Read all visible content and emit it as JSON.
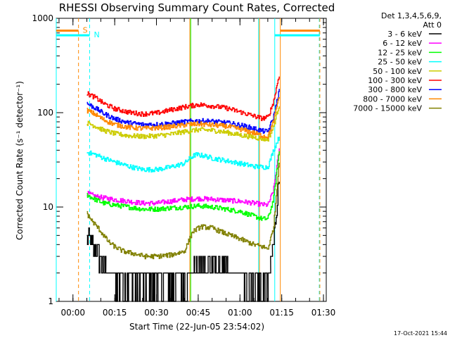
{
  "chart_data": {
    "type": "line",
    "title": "RHESSI Observing Summary Count Rates, Corrected",
    "xlabel": "Start Time (22-Jun-05 23:54:02)",
    "ylabel": "Corrected Count Rate (s⁻¹ detector⁻¹)",
    "yscale": "log",
    "ylim": [
      1,
      1000
    ],
    "xlim_minutes": [
      -6.0,
      91.0
    ],
    "x_ticks": [
      {
        "label": "00:00",
        "min": 0
      },
      {
        "label": "00:15",
        "min": 15
      },
      {
        "label": "00:30",
        "min": 30
      },
      {
        "label": "00:45",
        "min": 45
      },
      {
        "label": "01:00",
        "min": 60
      },
      {
        "label": "01:15",
        "min": 75
      },
      {
        "label": "01:30",
        "min": 90
      }
    ],
    "y_ticks": [
      {
        "label": "1",
        "value": 1
      },
      {
        "label": "10",
        "value": 10
      },
      {
        "label": "100",
        "value": 100
      },
      {
        "label": "1000",
        "value": 1000
      }
    ],
    "legend_header": [
      "Det 1,3,4,5,6,9,",
      "Att 0"
    ],
    "series": [
      {
        "name": "3 - 6 keV",
        "color": "#000000",
        "x": [
          5,
          8,
          11,
          13,
          16,
          20,
          25,
          30,
          35,
          40,
          45,
          50,
          55,
          60,
          65,
          68,
          70,
          72,
          74
        ],
        "values": [
          5.0,
          3.5,
          2.5,
          2.0,
          1.7,
          1.6,
          1.6,
          1.6,
          1.6,
          1.7,
          2.2,
          2.5,
          2.2,
          1.8,
          1.6,
          1.4,
          1.5,
          4.0,
          20
        ]
      },
      {
        "name": "6 - 12 keV",
        "color": "#ff00ff",
        "x": [
          5,
          8,
          11,
          15,
          20,
          25,
          30,
          35,
          40,
          45,
          50,
          55,
          60,
          65,
          68,
          70,
          72,
          74
        ],
        "values": [
          14,
          13,
          12.5,
          12,
          11.5,
          11,
          11,
          11.5,
          12,
          12.3,
          12.1,
          11.8,
          11.5,
          11,
          10.6,
          10.5,
          15,
          40
        ]
      },
      {
        "name": "12 - 25 keV",
        "color": "#00ff00",
        "x": [
          5,
          8,
          11,
          15,
          20,
          25,
          30,
          35,
          40,
          45,
          50,
          55,
          60,
          65,
          68,
          70,
          72,
          74
        ],
        "values": [
          13.5,
          12,
          11,
          10.5,
          10,
          9.5,
          9.5,
          9.8,
          10,
          10.3,
          10,
          9.5,
          9,
          8,
          7.5,
          7.5,
          12,
          38
        ]
      },
      {
        "name": "25 - 50 keV",
        "color": "#00ffff",
        "x": [
          5,
          8,
          11,
          15,
          20,
          25,
          30,
          35,
          40,
          42,
          44,
          47,
          50,
          55,
          60,
          65,
          68,
          70,
          72,
          74
        ],
        "values": [
          38,
          36,
          33,
          30,
          27,
          25,
          25,
          26.5,
          29,
          33,
          36,
          35,
          33,
          31,
          29,
          27,
          26.5,
          26.5,
          40,
          55
        ]
      },
      {
        "name": "50 - 100 keV",
        "color": "#cccc00",
        "x": [
          5,
          8,
          11,
          15,
          20,
          25,
          30,
          35,
          40,
          45,
          50,
          55,
          60,
          65,
          68,
          70,
          72,
          74
        ],
        "values": [
          78,
          72,
          65,
          60,
          57,
          56,
          57,
          59,
          63,
          66,
          65,
          62,
          58,
          55,
          53,
          52,
          70,
          120
        ]
      },
      {
        "name": "100 - 300 keV",
        "color": "#ff0000",
        "x": [
          5,
          8,
          11,
          15,
          20,
          25,
          30,
          35,
          40,
          45,
          50,
          55,
          60,
          65,
          68,
          70,
          72,
          74
        ],
        "values": [
          160,
          145,
          125,
          110,
          101,
          97,
          99,
          107,
          115,
          122,
          118,
          112,
          102,
          92,
          87,
          89,
          130,
          250
        ]
      },
      {
        "name": "300 - 800 keV",
        "color": "#0000ff",
        "x": [
          5,
          8,
          11,
          15,
          20,
          25,
          30,
          35,
          40,
          45,
          50,
          55,
          60,
          65,
          68,
          70,
          72,
          74
        ],
        "values": [
          125,
          112,
          98,
          86,
          78,
          75,
          75,
          77,
          80,
          82,
          81,
          78,
          74,
          68,
          64,
          63,
          90,
          170
        ]
      },
      {
        "name": "800 - 7000 keV",
        "color": "#ff8800",
        "x": [
          5,
          8,
          11,
          15,
          20,
          25,
          30,
          35,
          40,
          45,
          50,
          55,
          60,
          65,
          68,
          70,
          72,
          74
        ],
        "values": [
          106,
          96,
          84,
          75,
          70,
          68,
          69,
          71,
          74,
          76,
          74,
          72,
          67,
          61,
          57,
          56,
          80,
          150
        ]
      },
      {
        "name": "7000 - 15000 keV",
        "color": "#808000",
        "x": [
          5,
          7,
          9,
          11,
          13,
          15,
          18,
          22,
          26,
          30,
          35,
          40,
          43,
          46,
          50,
          55,
          60,
          65,
          68,
          70,
          72,
          74
        ],
        "values": [
          8.5,
          7,
          6,
          5,
          4.2,
          3.8,
          3.4,
          3.2,
          3.0,
          3.0,
          3.1,
          3.4,
          5.5,
          6.2,
          6.0,
          5.2,
          4.6,
          4.0,
          3.8,
          3.6,
          6,
          30
        ]
      }
    ],
    "markers": [
      {
        "type": "vline",
        "x": -6.0,
        "color": "#00ffff",
        "style": "solid"
      },
      {
        "type": "vline",
        "x": 2.0,
        "color": "#ff8800",
        "style": "dash"
      },
      {
        "type": "vline",
        "x": 6.0,
        "color": "#00ffff",
        "style": "dash"
      },
      {
        "type": "vline",
        "x": 72.5,
        "color": "#00ffff",
        "style": "solid"
      },
      {
        "type": "vline",
        "x": 74.5,
        "color": "#ff8800",
        "style": "solid"
      },
      {
        "type": "vline",
        "x": 88.5,
        "color": "#00ffff",
        "style": "dash"
      },
      {
        "type": "vline",
        "x": 88.7,
        "color": "#ff8800",
        "style": "dash"
      },
      {
        "type": "vline",
        "x": 42.0,
        "color": "#ff8800",
        "style": "solid"
      },
      {
        "type": "vline",
        "x": 42.3,
        "color": "#00ff00",
        "style": "solid"
      },
      {
        "type": "vline",
        "x": 66.7,
        "color": "#00ffff",
        "style": "solid"
      },
      {
        "type": "vline",
        "x": 67.0,
        "color": "#ff8800",
        "style": "solid"
      }
    ],
    "interval_bars": [
      {
        "label": "S",
        "color": "#ff8800",
        "x0": -6.0,
        "x1": 2.0,
        "value": 740
      },
      {
        "label": "N",
        "color": "#00ffff",
        "x0": -6.0,
        "x1": 6.0,
        "value": 660
      },
      {
        "label": "",
        "color": "#ff8800",
        "x0": 74.5,
        "x1": 88.7,
        "value": 740
      },
      {
        "label": "",
        "color": "#00ffff",
        "x0": 72.5,
        "x1": 88.7,
        "value": 660
      }
    ]
  },
  "footer": {
    "date": "17-Oct-2021 15:44"
  }
}
